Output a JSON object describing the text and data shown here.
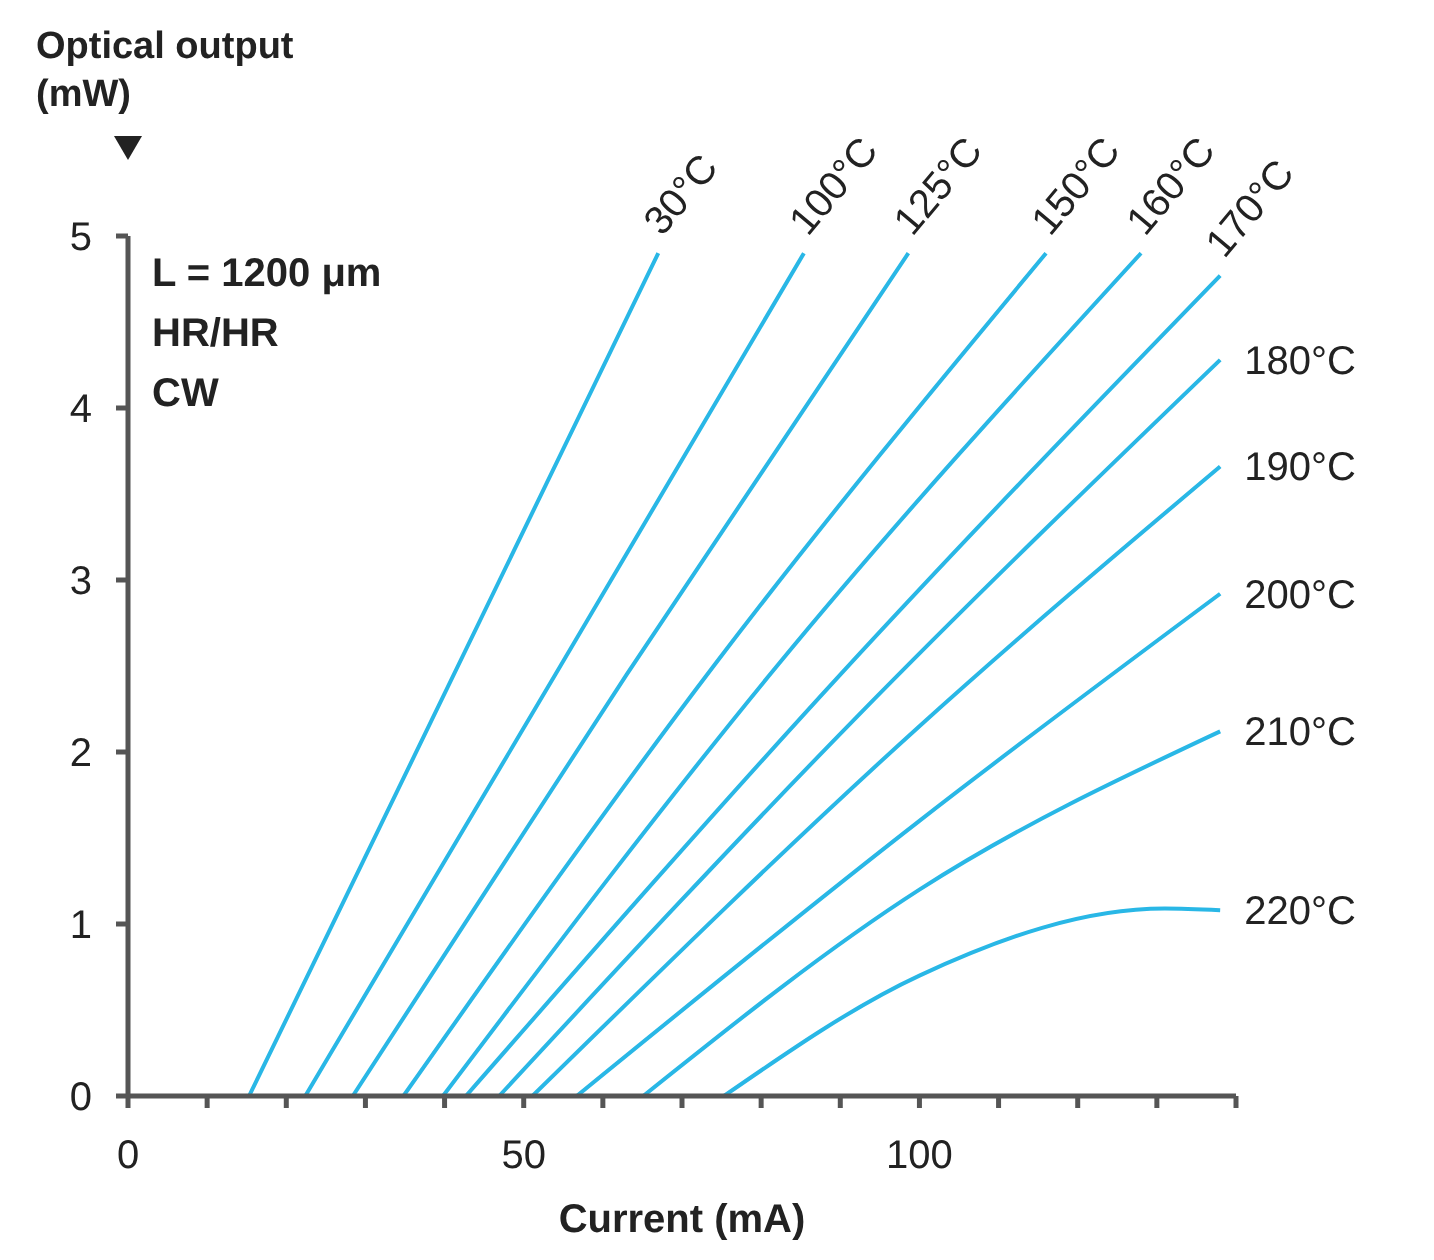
{
  "chart_data": {
    "type": "line",
    "xlabel": "Current (mA)",
    "ylabel": "Optical output (mW)",
    "annotations": [
      "L = 1200 μm",
      "HR/HR",
      "CW"
    ],
    "xlim": [
      0,
      140
    ],
    "ylim": [
      0,
      5
    ],
    "xticks": [
      0,
      {
        "value": 10,
        "label": null
      },
      {
        "value": 20,
        "label": null
      },
      {
        "value": 30,
        "label": null
      },
      {
        "value": 40,
        "label": null
      },
      50,
      {
        "value": 60,
        "label": null
      },
      {
        "value": 70,
        "label": null
      },
      {
        "value": 80,
        "label": null
      },
      {
        "value": 90,
        "label": null
      },
      100,
      {
        "value": 110,
        "label": null
      },
      {
        "value": 120,
        "label": null
      },
      {
        "value": 130,
        "label": null
      },
      {
        "value": 140,
        "label": null
      }
    ],
    "yticks": [
      0,
      1,
      2,
      3,
      4,
      5
    ],
    "grid": false,
    "legend": false,
    "marker": "none",
    "line_style": "solid",
    "series": [
      {
        "name": "30°C",
        "color": "#29b7e6",
        "x": [
          15.3,
          28.4,
          67
        ],
        "values": [
          0,
          1.24,
          4.9
        ]
      },
      {
        "name": "100°C",
        "color": "#29b7e6",
        "x": [
          22.4,
          54,
          85.4
        ],
        "values": [
          0,
          2.45,
          4.9
        ]
      },
      {
        "name": "125°C",
        "color": "#29b7e6",
        "x": [
          28.4,
          63,
          98.6
        ],
        "values": [
          0,
          2.45,
          4.9
        ]
      },
      {
        "name": "150°C",
        "color": "#29b7e6",
        "x": [
          34.8,
          74,
          116
        ],
        "values": [
          0,
          2.5,
          4.9
        ]
      },
      {
        "name": "160°C",
        "color": "#29b7e6",
        "x": [
          39.8,
          82,
          128
        ],
        "values": [
          0,
          2.5,
          4.9
        ]
      },
      {
        "name": "170°C",
        "color": "#29b7e6",
        "x": [
          42.7,
          90,
          138
        ],
        "values": [
          0,
          2.45,
          4.77
        ]
      },
      {
        "name": "180°C",
        "color": "#29b7e6",
        "x": [
          46.9,
          92,
          138
        ],
        "values": [
          0,
          2.2,
          4.28
        ]
      },
      {
        "name": "190°C",
        "color": "#29b7e6",
        "x": [
          51.1,
          100,
          138
        ],
        "values": [
          0,
          2.15,
          3.66
        ]
      },
      {
        "name": "200°C",
        "color": "#29b7e6",
        "x": [
          56.7,
          100,
          138
        ],
        "values": [
          0,
          1.6,
          2.92
        ]
      },
      {
        "name": "210°C",
        "color": "#29b7e6",
        "x": [
          65.1,
          100,
          138
        ],
        "values": [
          0,
          1.2,
          2.12
        ]
      },
      {
        "name": "220°C",
        "color": "#29b7e6",
        "x": [
          75.3,
          100,
          131,
          138
        ],
        "values": [
          0,
          0.7,
          1.09,
          1.08
        ]
      }
    ]
  }
}
